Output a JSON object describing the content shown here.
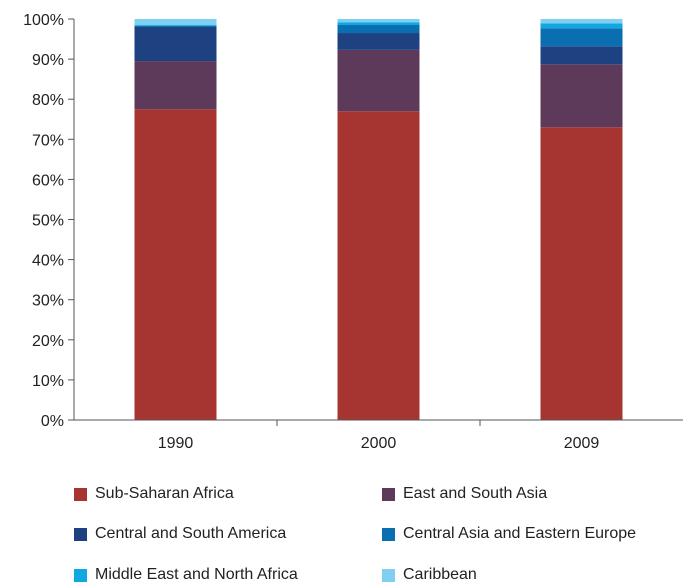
{
  "chart_data": {
    "type": "bar",
    "stacked": true,
    "title": "",
    "xlabel": "",
    "ylabel": "",
    "categories": [
      "1990",
      "2000",
      "2009"
    ],
    "ylim": [
      0,
      100
    ],
    "y_tick_labels": [
      "0%",
      "10%",
      "20%",
      "30%",
      "40%",
      "50%",
      "60%",
      "70%",
      "80%",
      "90%",
      "100%"
    ],
    "grid": false,
    "legend_position": "bottom",
    "series": [
      {
        "name": "Sub-Saharan Africa",
        "color": "#A63431",
        "values": [
          77.5,
          77.0,
          73.0
        ]
      },
      {
        "name": "East and South Asia",
        "color": "#5E3A5A",
        "values": [
          12.0,
          15.3,
          15.7
        ]
      },
      {
        "name": "Central and South America",
        "color": "#1E4182",
        "values": [
          8.5,
          4.2,
          4.5
        ]
      },
      {
        "name": "Central Asia and Eastern Europe",
        "color": "#0A6FB0",
        "values": [
          0.3,
          2.0,
          4.5
        ]
      },
      {
        "name": "Middle East and North Africa",
        "color": "#0FA8E0",
        "values": [
          0.2,
          0.7,
          1.2
        ]
      },
      {
        "name": "Caribbean",
        "color": "#7FD0F0",
        "values": [
          1.5,
          0.8,
          1.1
        ]
      }
    ]
  }
}
